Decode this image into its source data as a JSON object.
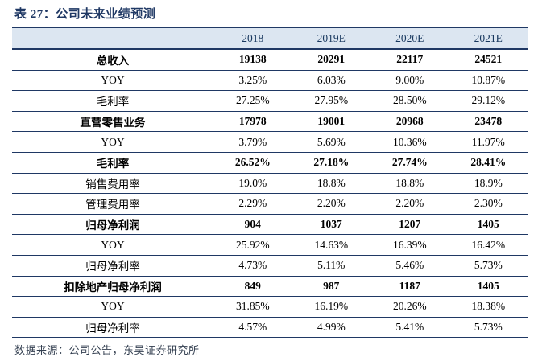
{
  "title": "表 27：公司未来业绩预测",
  "table": {
    "header": [
      "",
      "2018",
      "2019E",
      "2020E",
      "2021E"
    ],
    "rows": [
      {
        "label": "总收入",
        "values": [
          "19138",
          "20291",
          "22117",
          "24521"
        ],
        "bold": true
      },
      {
        "label": "YOY",
        "values": [
          "3.25%",
          "6.03%",
          "9.00%",
          "10.87%"
        ],
        "bold": false
      },
      {
        "label": "毛利率",
        "values": [
          "27.25%",
          "27.95%",
          "28.50%",
          "29.12%"
        ],
        "bold": false
      },
      {
        "label": "直营零售业务",
        "values": [
          "17978",
          "19001",
          "20968",
          "23478"
        ],
        "bold": true
      },
      {
        "label": "YOY",
        "values": [
          "3.79%",
          "5.69%",
          "10.36%",
          "11.97%"
        ],
        "bold": false
      },
      {
        "label": "毛利率",
        "values": [
          "26.52%",
          "27.18%",
          "27.74%",
          "28.41%"
        ],
        "bold": true
      },
      {
        "label": "销售费用率",
        "values": [
          "19.0%",
          "18.8%",
          "18.8%",
          "18.9%"
        ],
        "bold": false
      },
      {
        "label": "管理费用率",
        "values": [
          "2.29%",
          "2.20%",
          "2.20%",
          "2.30%"
        ],
        "bold": false
      },
      {
        "label": "归母净利润",
        "values": [
          "904",
          "1037",
          "1207",
          "1405"
        ],
        "bold": true
      },
      {
        "label": "YOY",
        "values": [
          "25.92%",
          "14.63%",
          "16.39%",
          "16.42%"
        ],
        "bold": false
      },
      {
        "label": "归母净利率",
        "values": [
          "4.73%",
          "5.11%",
          "5.46%",
          "5.73%"
        ],
        "bold": false
      },
      {
        "label": "扣除地产归母净利润",
        "values": [
          "849",
          "987",
          "1187",
          "1405"
        ],
        "bold": true
      },
      {
        "label": "YOY",
        "values": [
          "31.85%",
          "16.19%",
          "20.26%",
          "18.38%"
        ],
        "bold": false
      },
      {
        "label": "归母净利率",
        "values": [
          "4.57%",
          "4.99%",
          "5.41%",
          "5.73%"
        ],
        "bold": false
      }
    ]
  },
  "footer": "数据来源：公司公告，东吴证券研究所",
  "colors": {
    "accent_navy": "#1F3864",
    "header_bg": "#DCE6F1",
    "body_text": "#000000",
    "footer_text": "#333F50"
  }
}
